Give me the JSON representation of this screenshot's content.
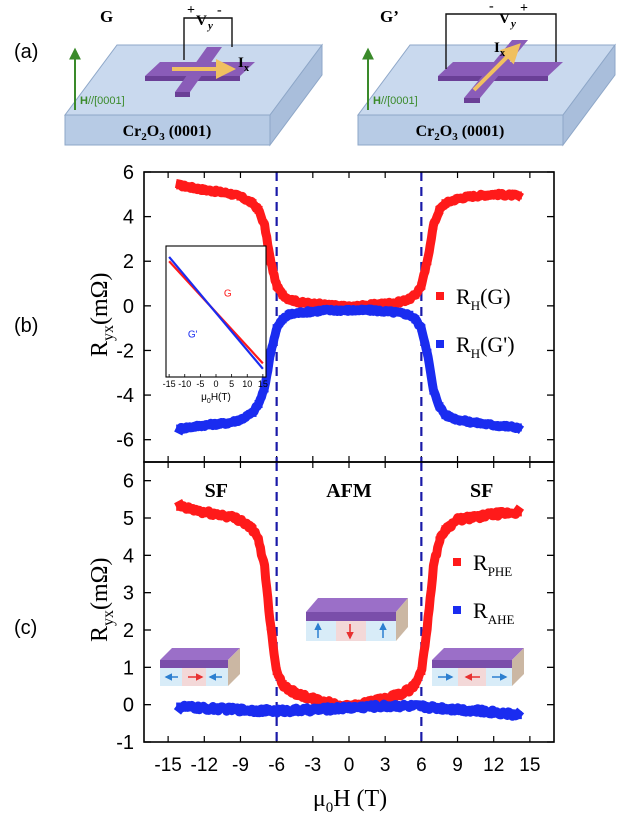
{
  "panel_labels": {
    "a": "(a)",
    "b": "(b)",
    "c": "(c)"
  },
  "schematic": {
    "left": {
      "title": "G",
      "voltage": {
        "plus": "+",
        "v": "V",
        "sub": "y",
        "minus": "-"
      },
      "current": {
        "main": "I",
        "sub": "x"
      },
      "field": {
        "bold": "H",
        "rest": "//[0001]"
      },
      "substrate": {
        "pre": "Cr",
        "sub1": "2",
        "mid": "O",
        "sub2": "3",
        "post": " (0001)"
      }
    },
    "right": {
      "title": "G’",
      "voltage": {
        "minus": "-",
        "v": "V",
        "sub": "y",
        "plus": "+"
      },
      "current": {
        "main": "I",
        "sub": "x"
      },
      "field": {
        "bold": "H",
        "rest": "//[0001]"
      },
      "substrate": {
        "pre": "Cr",
        "sub1": "2",
        "mid": "O",
        "sub2": "3",
        "post": " (0001)"
      }
    }
  },
  "colors": {
    "red": "#ff1a1a",
    "blue": "#1a2cf0",
    "dash": "#1a1aa8",
    "green": "#3a8a2a",
    "purple": "#8a5cb8",
    "substrate": "#c2d4ea",
    "arrow_yellow": "#f0c060"
  },
  "chart_data": [
    {
      "type": "scatter",
      "panel": "b",
      "title": "",
      "xlabel": "",
      "ylabel": {
        "main": "R",
        "sub": "yx",
        "unit": "(mΩ)"
      },
      "xlim": [
        -17,
        17
      ],
      "ylim": [
        -7,
        6
      ],
      "yticks": [
        -6,
        -4,
        -2,
        0,
        2,
        4,
        6
      ],
      "vlines": [
        -6,
        6
      ],
      "legend": {
        "position": "right",
        "entries": [
          {
            "main": "R",
            "sub": "H",
            "tail": "(G)",
            "color": "#ff1a1a"
          },
          {
            "main": "R",
            "sub": "H",
            "tail": "(G')",
            "color": "#1a2cf0"
          }
        ]
      },
      "series": [
        {
          "name": "R_H(G)",
          "color": "#ff1a1a",
          "x": [
            -14,
            -12,
            -10,
            -9,
            -8,
            -7.5,
            -7,
            -6.5,
            -6,
            -5.5,
            -5,
            -4,
            -3,
            -2,
            -1,
            0,
            1,
            2,
            3,
            4,
            5,
            5.5,
            6,
            6.5,
            7,
            7.5,
            8,
            9,
            10,
            12,
            14
          ],
          "y": [
            5.4,
            5.2,
            5.05,
            4.9,
            4.6,
            4.3,
            3.6,
            2.0,
            0.9,
            0.5,
            0.3,
            0.15,
            0.1,
            0.05,
            0.0,
            -0.05,
            0.0,
            0.05,
            0.1,
            0.15,
            0.3,
            0.5,
            0.9,
            2.0,
            3.6,
            4.3,
            4.6,
            4.8,
            4.9,
            5.0,
            4.95
          ]
        },
        {
          "name": "R_H(G')",
          "color": "#1a2cf0",
          "x": [
            -14,
            -12,
            -10,
            -9,
            -8,
            -7.5,
            -7,
            -6.5,
            -6,
            -5.5,
            -5,
            -4,
            -3,
            -2,
            -1,
            0,
            1,
            2,
            3,
            4,
            5,
            5.5,
            6,
            6.5,
            7,
            7.5,
            8,
            9,
            10,
            12,
            14
          ],
          "y": [
            -5.5,
            -5.35,
            -5.25,
            -5.1,
            -4.8,
            -4.4,
            -3.7,
            -2.1,
            -1.0,
            -0.6,
            -0.4,
            -0.3,
            -0.25,
            -0.2,
            -0.2,
            -0.2,
            -0.2,
            -0.2,
            -0.25,
            -0.3,
            -0.4,
            -0.6,
            -1.0,
            -2.1,
            -3.8,
            -4.5,
            -4.9,
            -5.1,
            -5.2,
            -5.35,
            -5.45
          ]
        }
      ],
      "inset": {
        "xlabel": {
          "pre": "μ",
          "sub": "0",
          "post": "H(T)"
        },
        "xticks": [
          -15,
          -10,
          -5,
          0,
          5,
          10,
          15
        ],
        "xlim": [
          -16,
          16
        ],
        "ylim": [
          -1.2,
          1.2
        ],
        "series": [
          {
            "name": "G",
            "label": "G",
            "color": "#ff1a1a",
            "x": [
              -15,
              15
            ],
            "y": [
              0.92,
              -0.95
            ]
          },
          {
            "name": "G'",
            "label": "G'",
            "color": "#1a2cf0",
            "x": [
              -15,
              15
            ],
            "y": [
              1.0,
              -1.05
            ]
          }
        ]
      }
    },
    {
      "type": "scatter",
      "panel": "c",
      "title": "",
      "xlabel": {
        "pre": "μ",
        "sub": "0",
        "post": "H (T)"
      },
      "ylabel": {
        "main": "R",
        "sub": "yx",
        "unit": "(mΩ)"
      },
      "xlim": [
        -17,
        17
      ],
      "ylim": [
        -1,
        6.5
      ],
      "xticks": [
        -15,
        -12,
        -9,
        -6,
        -3,
        0,
        3,
        6,
        9,
        12,
        15
      ],
      "yticks": [
        -1,
        0,
        1,
        2,
        3,
        4,
        5,
        6
      ],
      "vlines": [
        -6,
        6
      ],
      "region_labels": [
        {
          "text": "SF",
          "x": -11
        },
        {
          "text": "AFM",
          "x": 0
        },
        {
          "text": "SF",
          "x": 11
        }
      ],
      "legend": {
        "position": "right",
        "entries": [
          {
            "main": "R",
            "sub": "PHE",
            "tail": "",
            "color": "#ff1a1a"
          },
          {
            "main": "R",
            "sub": "AHE",
            "tail": "",
            "color": "#1a2cf0"
          }
        ]
      },
      "series": [
        {
          "name": "R_PHE",
          "color": "#ff1a1a",
          "x": [
            -14,
            -12,
            -10,
            -9,
            -8,
            -7.5,
            -7,
            -6.5,
            -6,
            -5.5,
            -5,
            -4,
            -3,
            -2,
            -1,
            0,
            1,
            2,
            3,
            4,
            5,
            5.5,
            6,
            6.5,
            7,
            7.5,
            8,
            9,
            10,
            12,
            14
          ],
          "y": [
            5.3,
            5.15,
            5.05,
            4.95,
            4.7,
            4.4,
            3.7,
            2.1,
            0.9,
            0.55,
            0.4,
            0.25,
            0.15,
            0.08,
            0.0,
            -0.05,
            0.0,
            0.08,
            0.15,
            0.25,
            0.4,
            0.55,
            0.9,
            2.1,
            3.7,
            4.4,
            4.7,
            4.95,
            5.0,
            5.1,
            5.15
          ]
        },
        {
          "name": "R_AHE",
          "color": "#1a2cf0",
          "x": [
            -14,
            -12,
            -10,
            -8,
            -6,
            -4,
            -2,
            0,
            2,
            4,
            6,
            8,
            10,
            12,
            14
          ],
          "y": [
            -0.05,
            -0.1,
            -0.12,
            -0.15,
            -0.17,
            -0.15,
            -0.12,
            -0.08,
            -0.05,
            -0.03,
            -0.05,
            -0.1,
            -0.15,
            -0.2,
            -0.28
          ]
        }
      ]
    }
  ]
}
